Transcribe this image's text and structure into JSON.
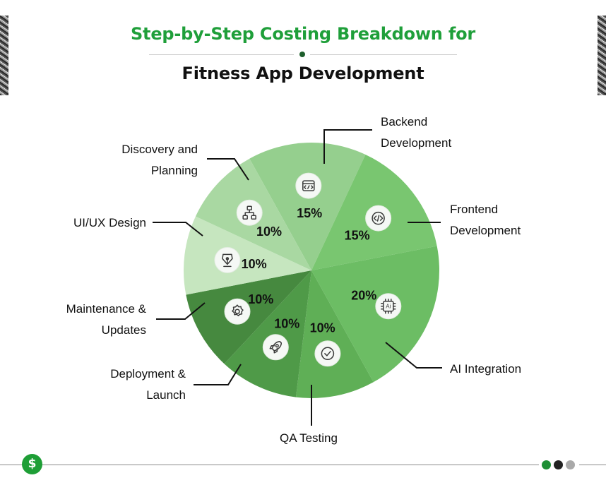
{
  "header": {
    "title_line1": "Step-by-Step Costing Breakdown for",
    "title_line2": "Fitness App Development"
  },
  "footer": {
    "badge_symbol": "$"
  },
  "colors": {
    "title_accent": "#1f9f3a",
    "line": "#111111",
    "icon_circle_fill": "#f5f8f5",
    "icon_stroke": "#3a3a3a"
  },
  "chart_data": {
    "type": "pie",
    "title": "Step-by-Step Costing Breakdown for Fitness App Development",
    "unit": "%",
    "slices": [
      {
        "label": "Backend Development",
        "value": 15,
        "value_label": "15%",
        "icon": "browser-code-icon",
        "color": "#95cf8e",
        "label_side": "right"
      },
      {
        "label": "Frontend Development",
        "value": 15,
        "value_label": "15%",
        "icon": "code-brackets-icon",
        "color": "#79c670",
        "label_side": "right"
      },
      {
        "label": "AI Integration",
        "value": 20,
        "value_label": "20%",
        "icon": "ai-chip-icon",
        "color": "#6cbd64",
        "label_side": "right"
      },
      {
        "label": "QA Testing",
        "value": 10,
        "value_label": "10%",
        "icon": "check-circle-icon",
        "color": "#5faf56",
        "label_side": "bottom"
      },
      {
        "label": "Deployment & Launch",
        "value": 10,
        "value_label": "10%",
        "icon": "rocket-icon",
        "color": "#4f9a48",
        "label_side": "left"
      },
      {
        "label": "Maintenance & Updates",
        "value": 10,
        "value_label": "10%",
        "icon": "gear-refresh-icon",
        "color": "#46893f",
        "label_side": "left"
      },
      {
        "label": "UI/UX Design",
        "value": 10,
        "value_label": "10%",
        "icon": "pen-nib-icon",
        "color": "#c6e6bf",
        "label_side": "left"
      },
      {
        "label": "Discovery and Planning",
        "value": 10,
        "value_label": "10%",
        "icon": "sitemap-icon",
        "color": "#a9d8a2",
        "label_side": "left"
      }
    ]
  }
}
